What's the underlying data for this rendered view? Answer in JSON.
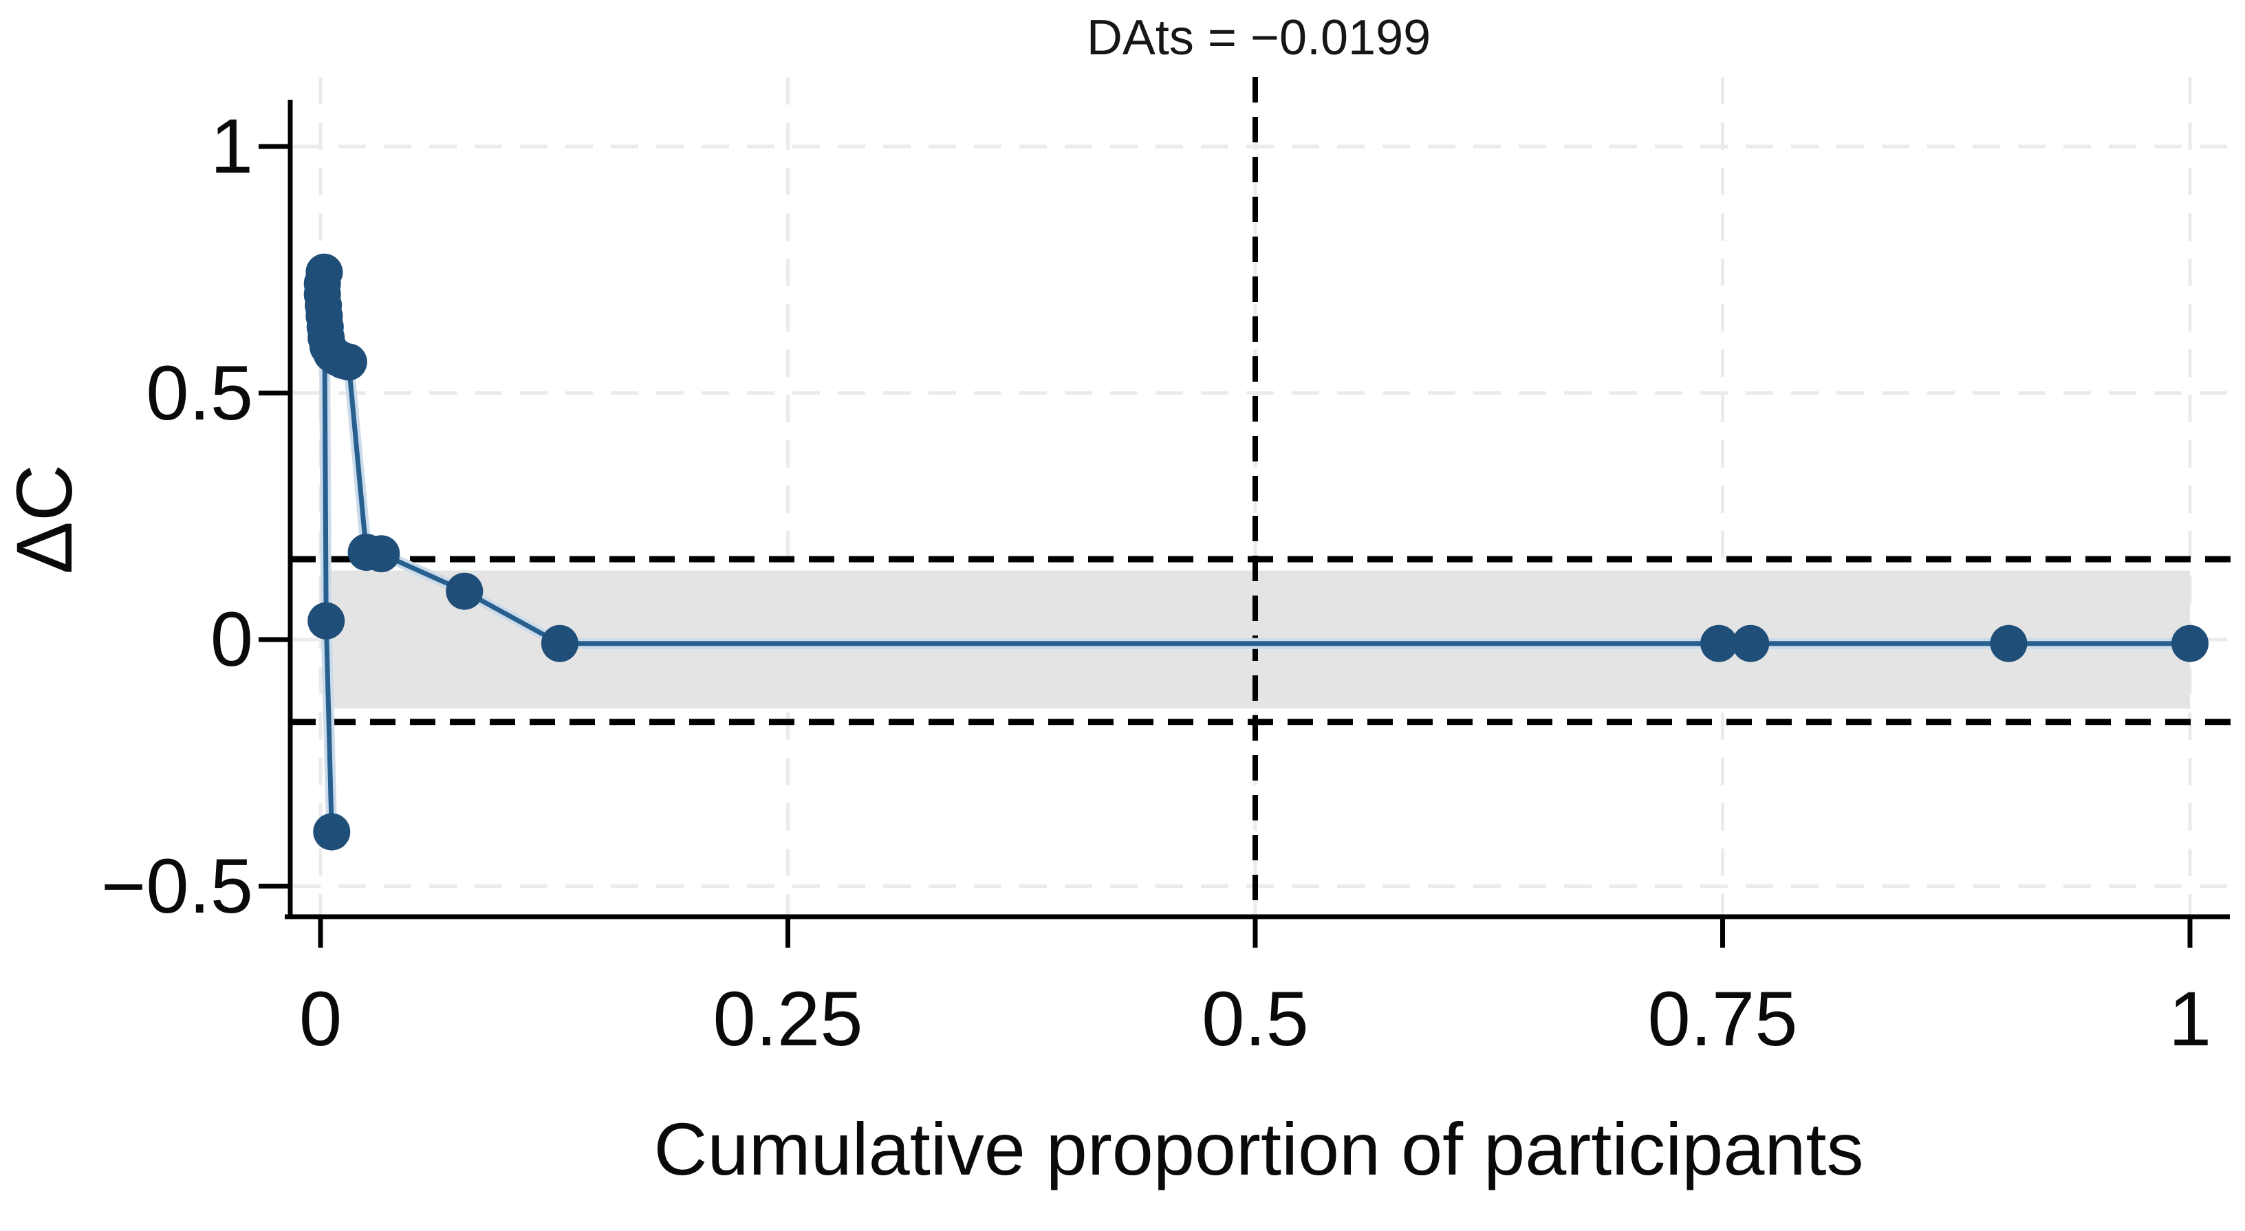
{
  "chart_data": {
    "type": "line",
    "title": "DAts = −0.0199",
    "xlabel": "Cumulative proportion of participants",
    "ylabel": "ΔC",
    "x_ticks": {
      "values": [
        0,
        0.25,
        0.5,
        0.75,
        1
      ],
      "labels": [
        "0",
        "0.25",
        "0.5",
        "0.75",
        "1"
      ]
    },
    "y_ticks": {
      "values": [
        1,
        0.5,
        0,
        -0.5
      ],
      "labels": [
        "1",
        "0.5",
        "0",
        "−0.5"
      ]
    },
    "xlim": [
      -0.016,
      1.025
    ],
    "ylim": [
      -0.56,
      1.14
    ],
    "grid": true,
    "legend_position": "none",
    "equivalence_band": {
      "lower": -0.14,
      "upper": 0.14,
      "x_start": 0.004,
      "x_end": 1.0,
      "color": "#e4e4e4"
    },
    "threshold_lines": {
      "upper": 0.163,
      "lower": -0.167,
      "style": "dashed",
      "color": "#000000"
    },
    "vertical_reference_line": {
      "x": 0.5,
      "style": "dashed",
      "color": "#000000"
    },
    "series": [
      {
        "name": "delta-C vs cumulative proportion of participants",
        "marker": "circle",
        "marker_color": "#1f4e79",
        "line_color": "#27608f",
        "halo_color": "#ccdbe9",
        "points": [
          [
            0.006,
            -0.39
          ],
          [
            0.003,
            0.038
          ],
          [
            0.002,
            0.745
          ],
          [
            0.001,
            0.722
          ],
          [
            0.001,
            0.7
          ],
          [
            0.0015,
            0.678
          ],
          [
            0.002,
            0.656
          ],
          [
            0.0025,
            0.634
          ],
          [
            0.003,
            0.612
          ],
          [
            0.004,
            0.594
          ],
          [
            0.006,
            0.58
          ],
          [
            0.009,
            0.572
          ],
          [
            0.012,
            0.566
          ],
          [
            0.015,
            0.563
          ],
          [
            0.0245,
            0.177
          ],
          [
            0.0325,
            0.174
          ],
          [
            0.077,
            0.098
          ],
          [
            0.128,
            -0.008
          ],
          [
            0.748,
            -0.008
          ],
          [
            0.765,
            -0.008
          ],
          [
            0.903,
            -0.008
          ],
          [
            1.0,
            -0.008
          ]
        ]
      }
    ]
  }
}
